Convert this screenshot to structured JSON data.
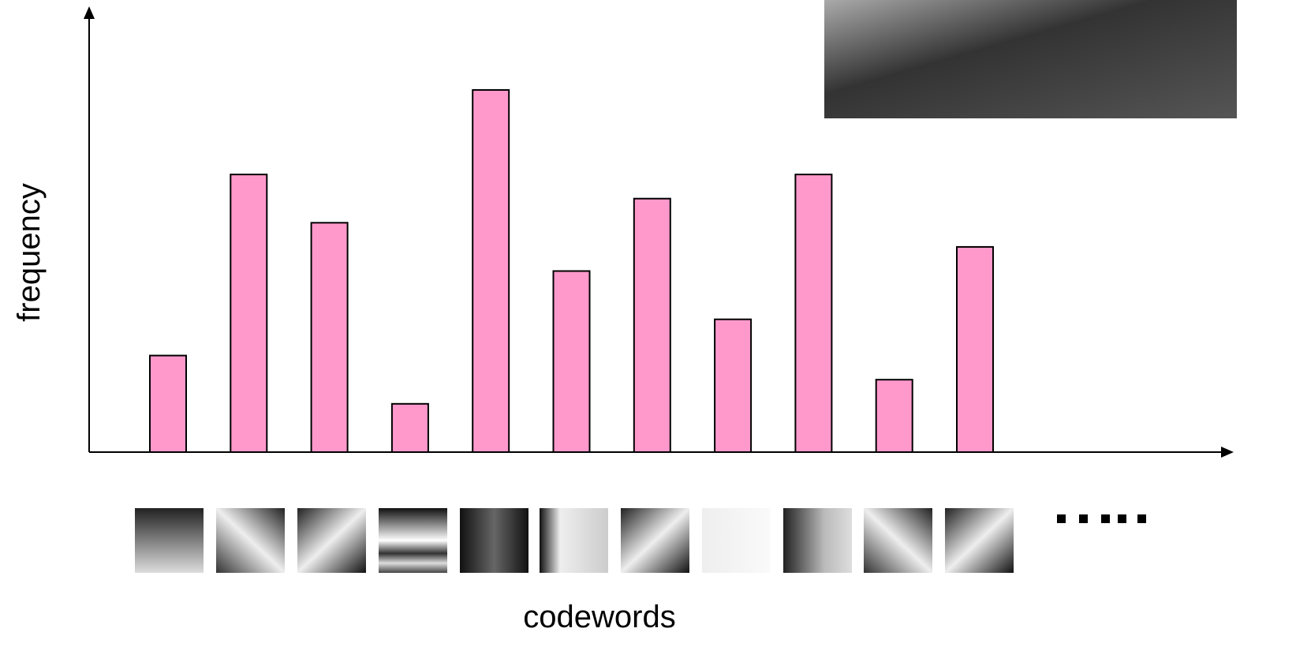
{
  "chart_data": {
    "type": "bar",
    "x_label": "codewords",
    "y_label": "frequency",
    "categories": [
      null,
      null,
      null,
      null,
      null,
      null,
      null,
      null,
      null,
      null,
      null
    ],
    "values": [
      2,
      5.75,
      4.75,
      1,
      7.5,
      3.75,
      5.25,
      2.75,
      5.75,
      1.5,
      4.25
    ],
    "color": "#ff99cc",
    "ylim": [
      0,
      9.2
    ]
  }
}
